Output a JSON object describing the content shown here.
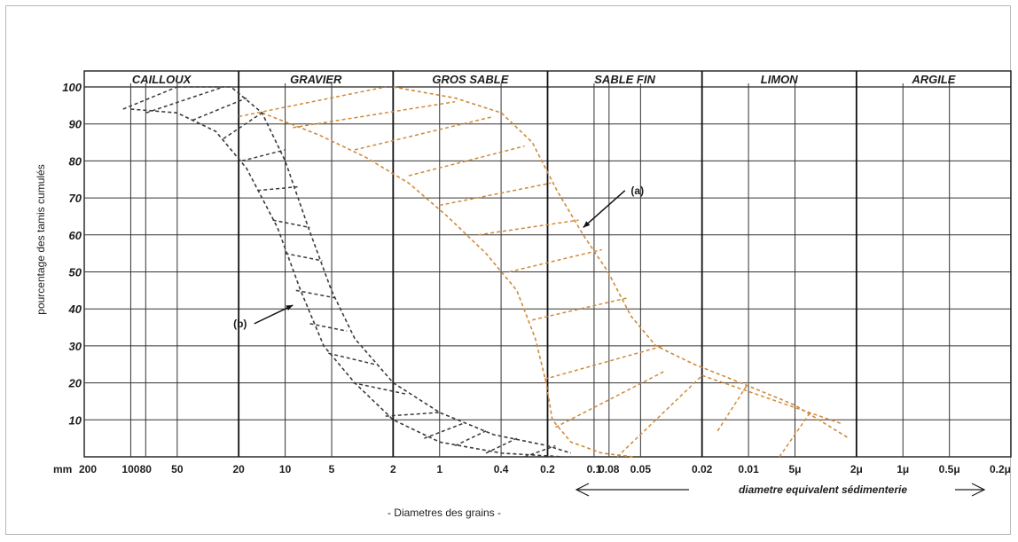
{
  "chart_data": {
    "type": "line",
    "title": "",
    "ylabel": "pourcentage des tamis cumulés",
    "xlabel": "- Diametres des grains -",
    "secondary_xlabel": "diametre equivalent sédimenterie",
    "y_unit_prefix": "mm",
    "ylim": [
      0,
      100
    ],
    "y_ticks": [
      "10",
      "20",
      "30",
      "40",
      "50",
      "60",
      "70",
      "80",
      "90",
      "100"
    ],
    "x_tick_labels": [
      "200",
      "100",
      "80",
      "50",
      "20",
      "10",
      "5",
      "2",
      "1",
      "0.4",
      "0.2",
      "0.1",
      "0.08",
      "0.05",
      "0.02",
      "0.01",
      "5μ",
      "2μ",
      "1μ",
      "0.5μ",
      "0.2μ"
    ],
    "x_positions_log10_mm": [
      2.301,
      2,
      1.903,
      1.699,
      1.301,
      1,
      0.699,
      0.301,
      0,
      -0.398,
      -0.699,
      -1,
      -1.097,
      -1.301,
      -1.699,
      -2,
      -2.301,
      -2.699,
      -3,
      -3.301,
      -3.699
    ],
    "zones": [
      {
        "name": "CAILLOUX",
        "from_log10_mm": 2.301,
        "to_log10_mm": 1.301
      },
      {
        "name": "GRAVIER",
        "from_log10_mm": 1.301,
        "to_log10_mm": 0.301
      },
      {
        "name": "GROS SABLE",
        "from_log10_mm": 0.301,
        "to_log10_mm": -0.699
      },
      {
        "name": "SABLE FIN",
        "from_log10_mm": -0.699,
        "to_log10_mm": -1.699
      },
      {
        "name": "LIMON",
        "from_log10_mm": -1.699,
        "to_log10_mm": -2.699
      },
      {
        "name": "ARGILE",
        "from_log10_mm": -2.699,
        "to_log10_mm": -3.699
      }
    ],
    "grid": true,
    "series": [
      {
        "name": "(a)",
        "color": "#d08a3a",
        "upper_envelope": [
          {
            "x": 0.301,
            "y": 100
          },
          {
            "x": -0.1,
            "y": 97
          },
          {
            "x": -0.4,
            "y": 93
          },
          {
            "x": -0.6,
            "y": 85
          },
          {
            "x": -0.76,
            "y": 72
          },
          {
            "x": -0.93,
            "y": 60
          },
          {
            "x": -1.09,
            "y": 50
          },
          {
            "x": -1.24,
            "y": 38
          },
          {
            "x": -1.4,
            "y": 30
          },
          {
            "x": -1.65,
            "y": 25
          },
          {
            "x": -1.95,
            "y": 20
          },
          {
            "x": -2.3,
            "y": 14
          },
          {
            "x": -2.65,
            "y": 5
          }
        ],
        "lower_envelope": [
          {
            "x": 1.15,
            "y": 93
          },
          {
            "x": 0.78,
            "y": 87
          },
          {
            "x": 0.48,
            "y": 81
          },
          {
            "x": 0.2,
            "y": 74
          },
          {
            "x": -0.05,
            "y": 65
          },
          {
            "x": -0.3,
            "y": 55
          },
          {
            "x": -0.5,
            "y": 45
          },
          {
            "x": -0.62,
            "y": 32
          },
          {
            "x": -0.69,
            "y": 20
          },
          {
            "x": -0.73,
            "y": 10
          },
          {
            "x": -0.85,
            "y": 4
          },
          {
            "x": -1.05,
            "y": 1
          },
          {
            "x": -1.25,
            "y": 0
          }
        ],
        "hatch": [
          {
            "x1": 1.3,
            "y1": 92,
            "x2": 0.35,
            "y2": 100
          },
          {
            "x1": 0.95,
            "y1": 89,
            "x2": -0.1,
            "y2": 96
          },
          {
            "x1": 0.55,
            "y1": 83,
            "x2": -0.35,
            "y2": 92
          },
          {
            "x1": 0.2,
            "y1": 76,
            "x2": -0.55,
            "y2": 84
          },
          {
            "x1": 0.0,
            "y1": 68,
            "x2": -0.72,
            "y2": 74
          },
          {
            "x1": -0.25,
            "y1": 60,
            "x2": -0.9,
            "y2": 64
          },
          {
            "x1": -0.45,
            "y1": 50,
            "x2": -1.05,
            "y2": 56
          },
          {
            "x1": -0.6,
            "y1": 37,
            "x2": -1.22,
            "y2": 43
          },
          {
            "x1": -0.68,
            "y1": 21,
            "x2": -1.45,
            "y2": 30
          },
          {
            "x1": -0.75,
            "y1": 8,
            "x2": -1.45,
            "y2": 23
          },
          {
            "x1": -1.15,
            "y1": 0,
            "x2": -1.7,
            "y2": 22
          },
          {
            "x1": -1.8,
            "y1": 7,
            "x2": -2.0,
            "y2": 20
          },
          {
            "x1": -2.2,
            "y1": 0,
            "x2": -2.4,
            "y2": 12
          },
          {
            "x1": -1.7,
            "y1": 22,
            "x2": -2.6,
            "y2": 9
          }
        ]
      },
      {
        "name": "(b)",
        "color": "#3a3a3a",
        "upper_envelope": [
          {
            "x": 1.7,
            "y": 100
          },
          {
            "x": 1.35,
            "y": 100
          },
          {
            "x": 1.15,
            "y": 93
          },
          {
            "x": 1.0,
            "y": 80
          },
          {
            "x": 0.85,
            "y": 62
          },
          {
            "x": 0.7,
            "y": 45
          },
          {
            "x": 0.55,
            "y": 32
          },
          {
            "x": 0.3,
            "y": 20
          },
          {
            "x": 0.0,
            "y": 12
          },
          {
            "x": -0.35,
            "y": 6
          },
          {
            "x": -0.7,
            "y": 3
          },
          {
            "x": -0.85,
            "y": 1
          }
        ],
        "lower_envelope": [
          {
            "x": 2.0,
            "y": 94
          },
          {
            "x": 1.7,
            "y": 93
          },
          {
            "x": 1.45,
            "y": 88
          },
          {
            "x": 1.25,
            "y": 78
          },
          {
            "x": 1.05,
            "y": 62
          },
          {
            "x": 0.9,
            "y": 45
          },
          {
            "x": 0.75,
            "y": 30
          },
          {
            "x": 0.55,
            "y": 20
          },
          {
            "x": 0.3,
            "y": 10
          },
          {
            "x": 0.0,
            "y": 4
          },
          {
            "x": -0.4,
            "y": 1
          },
          {
            "x": -0.8,
            "y": 0
          }
        ],
        "hatch": [
          {
            "x1": 2.05,
            "y1": 94,
            "x2": 1.7,
            "y2": 100
          },
          {
            "x1": 1.9,
            "y1": 93,
            "x2": 1.4,
            "y2": 100
          },
          {
            "x1": 1.6,
            "y1": 91,
            "x2": 1.25,
            "y2": 97
          },
          {
            "x1": 1.4,
            "y1": 86,
            "x2": 1.15,
            "y2": 93
          },
          {
            "x1": 1.28,
            "y1": 80,
            "x2": 1.0,
            "y2": 83
          },
          {
            "x1": 1.18,
            "y1": 72,
            "x2": 0.92,
            "y2": 73
          },
          {
            "x1": 1.08,
            "y1": 64,
            "x2": 0.84,
            "y2": 62
          },
          {
            "x1": 1.0,
            "y1": 55,
            "x2": 0.76,
            "y2": 53
          },
          {
            "x1": 0.93,
            "y1": 45,
            "x2": 0.68,
            "y2": 43
          },
          {
            "x1": 0.84,
            "y1": 36,
            "x2": 0.6,
            "y2": 34
          },
          {
            "x1": 0.72,
            "y1": 28,
            "x2": 0.42,
            "y2": 25
          },
          {
            "x1": 0.56,
            "y1": 20,
            "x2": 0.22,
            "y2": 17
          },
          {
            "x1": 0.35,
            "y1": 11,
            "x2": 0.0,
            "y2": 12
          },
          {
            "x1": 0.1,
            "y1": 5,
            "x2": -0.15,
            "y2": 9
          },
          {
            "x1": -0.1,
            "y1": 3,
            "x2": -0.3,
            "y2": 7
          },
          {
            "x1": -0.3,
            "y1": 1,
            "x2": -0.5,
            "y2": 5
          },
          {
            "x1": -0.55,
            "y1": 0,
            "x2": -0.75,
            "y2": 3
          }
        ]
      }
    ],
    "annotations": [
      {
        "label": "(a)",
        "target": {
          "x": -0.93,
          "y": 62
        },
        "from": {
          "x": -1.2,
          "y": 72
        }
      },
      {
        "label": "(b)",
        "target": {
          "x": 0.95,
          "y": 41
        },
        "from": {
          "x": 1.2,
          "y": 36
        }
      }
    ]
  }
}
